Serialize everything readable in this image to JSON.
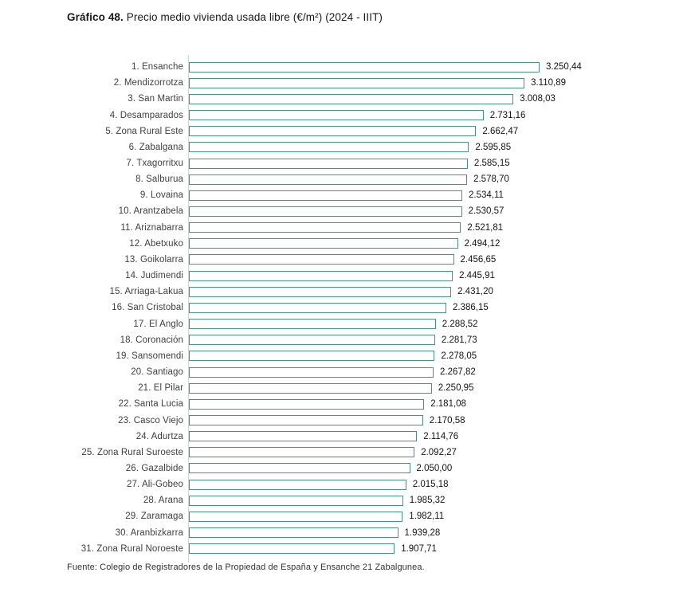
{
  "header": {
    "title_prefix": "Gráfico 48.",
    "title_rest": " Precio medio vivienda usada libre (€/m²) (2024 - IIIT)"
  },
  "footer": {
    "source": "Fuente: Colegio de Registradores de la Propiedad de España y Ensanche 21 Zabalgunea."
  },
  "colors": {
    "bar_fill": "#ffffff",
    "bar_border": "#4a9188",
    "axis_line": "#ccd8d6",
    "label_text": "#3f3f3f",
    "value_text": "#141414"
  },
  "chart_data": {
    "type": "bar",
    "orientation": "horizontal",
    "title": "Gráfico 48. Precio medio vivienda usada libre (€/m²) (2024 - IIIT)",
    "xlabel": "",
    "ylabel": "",
    "xlim": [
      0,
      3400
    ],
    "grid": "off",
    "legend": "none",
    "categories": [
      "1. Ensanche",
      "2. Mendizorrotza",
      "3. San Martin",
      "4. Desamparados",
      "5. Zona Rural Este",
      "6. Zabalgana",
      "7. Txagorritxu",
      "8. Salburua",
      "9. Lovaina",
      "10. Arantzabela",
      "11. Ariznabarra",
      "12. Abetxuko",
      "13. Goikolarra",
      "14. Judimendi",
      "15. Arriaga-Lakua",
      "16. San Cristobal",
      "17. El Anglo",
      "18. Coronación",
      "19. Sansomendi",
      "20. Santiago",
      "21. El Pilar",
      "22. Santa Lucia",
      "23. Casco Viejo",
      "24. Adurtza",
      "25. Zona Rural Suroeste",
      "26. Gazalbide",
      "27. Ali-Gobeo",
      "28. Arana",
      "29. Zaramaga",
      "30. Aranbizkarra",
      "31. Zona Rural Noroeste"
    ],
    "values": [
      3250.44,
      3110.89,
      3008.03,
      2731.16,
      2662.47,
      2595.85,
      2585.15,
      2578.7,
      2534.11,
      2530.57,
      2521.81,
      2494.12,
      2456.65,
      2445.91,
      2431.2,
      2386.15,
      2288.52,
      2281.73,
      2278.05,
      2267.82,
      2250.95,
      2181.08,
      2170.58,
      2114.76,
      2092.27,
      2050.0,
      2015.18,
      1985.32,
      1982.11,
      1939.28,
      1907.71
    ],
    "value_labels": [
      "3.250,44",
      "3.110,89",
      "3.008,03",
      "2.731,16",
      "2.662,47",
      "2.595,85",
      "2.585,15",
      "2.578,70",
      "2.534,11",
      "2.530,57",
      "2.521,81",
      "2.494,12",
      "2.456,65",
      "2.445,91",
      "2.431,20",
      "2.386,15",
      "2.288,52",
      "2.281,73",
      "2.278,05",
      "2.267,82",
      "2.250,95",
      "2.181,08",
      "2.170,58",
      "2.114,76",
      "2.092,27",
      "2.050,00",
      "2.015,18",
      "1.985,32",
      "1.982,11",
      "1.939,28",
      "1.907,71"
    ]
  }
}
